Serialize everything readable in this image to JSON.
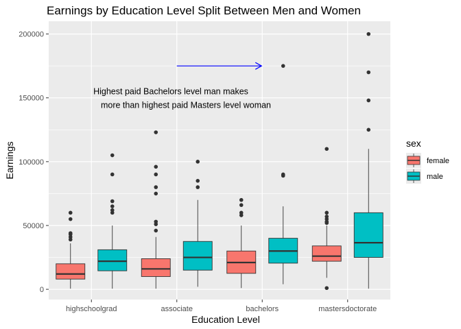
{
  "chart_data": {
    "type": "box",
    "title": "Earnings by Education Level Split Between Men and Women",
    "xlabel": "Education Level",
    "ylabel": "Earnings",
    "ylim": [
      -8000,
      210000
    ],
    "yticks": [
      0,
      50000,
      100000,
      150000,
      200000
    ],
    "ytick_labels": [
      "0",
      "50000",
      "100000",
      "150000",
      "200000"
    ],
    "categories": [
      "highschoolgrad",
      "associate",
      "bachelors",
      "mastersdoctorate"
    ],
    "grid": true,
    "legend": {
      "title": "sex",
      "position": "right",
      "entries": [
        {
          "label": "female",
          "color": "#F8766D"
        },
        {
          "label": "male",
          "color": "#00BFC4"
        }
      ]
    },
    "series": [
      {
        "name": "female",
        "color": "#F8766D",
        "boxes": [
          {
            "min": 500,
            "q1": 8000,
            "median": 12000,
            "q3": 20000,
            "max": 36000,
            "outliers": [
              39000,
              41000,
              43000,
              44000,
              55000,
              60000
            ]
          },
          {
            "min": 500,
            "q1": 10000,
            "median": 16000,
            "q3": 24000,
            "max": 41000,
            "outliers": [
              46000,
              51000,
              53000,
              75000,
              80000,
              90000,
              96000,
              123000
            ]
          },
          {
            "min": 1000,
            "q1": 12500,
            "median": 21000,
            "q3": 30000,
            "max": 50000,
            "outliers": [
              58000,
              60000,
              66000,
              70000
            ]
          },
          {
            "min": 9000,
            "q1": 22000,
            "median": 26000,
            "q3": 34000,
            "max": 50000,
            "outliers": [
              1000,
              52000,
              53000,
              55000,
              57000,
              60000,
              110000
            ]
          }
        ]
      },
      {
        "name": "male",
        "color": "#00BFC4",
        "boxes": [
          {
            "min": 500,
            "q1": 14500,
            "median": 22000,
            "q3": 31000,
            "max": 50000,
            "outliers": [
              60000,
              62000,
              65000,
              69000,
              90000,
              105000
            ]
          },
          {
            "min": 2000,
            "q1": 15000,
            "median": 25000,
            "q3": 37500,
            "max": 70000,
            "outliers": [
              80000,
              85000,
              100000
            ]
          },
          {
            "min": 4000,
            "q1": 20500,
            "median": 30000,
            "q3": 40000,
            "max": 65000,
            "outliers": [
              89000,
              90000,
              175000
            ]
          },
          {
            "min": 500,
            "q1": 25000,
            "median": 36500,
            "q3": 60000,
            "max": 110000,
            "outliers": [
              125000,
              148000,
              170000,
              200000
            ]
          }
        ]
      }
    ],
    "annotation": {
      "lines": [
        "Highest paid Bachelors level man makes",
        "more than highest paid Masters level woman"
      ],
      "arrow": {
        "from": {
          "x": 2.0,
          "y": 175000
        },
        "to": {
          "x": 3.0,
          "y": 175000
        },
        "color": "#0000FF"
      }
    }
  }
}
